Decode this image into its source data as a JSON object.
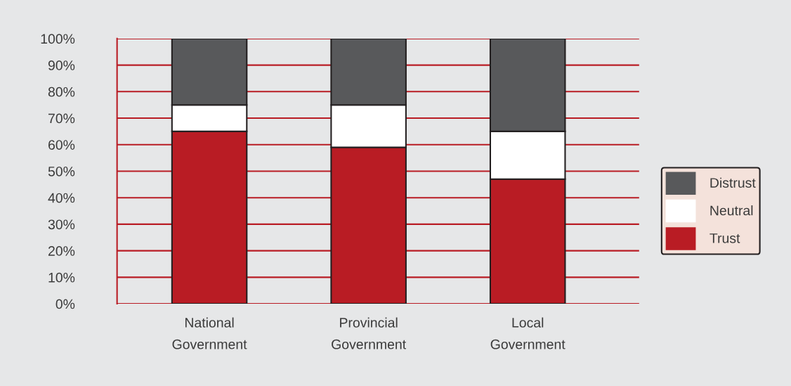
{
  "chart_data": {
    "type": "bar",
    "stacked": true,
    "categories": [
      "National\nGovernment",
      "Provincial\nGovernment",
      "Local\nGovernment"
    ],
    "series": [
      {
        "name": "Trust",
        "color": "#b91c24",
        "values": [
          65,
          59,
          47
        ]
      },
      {
        "name": "Neutral",
        "color": "#ffffff",
        "values": [
          10,
          16,
          18
        ]
      },
      {
        "name": "Distrust",
        "color": "#58595b",
        "values": [
          25,
          25,
          35
        ]
      }
    ],
    "ylim": [
      0,
      100
    ],
    "yticks": [
      {
        "value": 0,
        "label": "0%"
      },
      {
        "value": 10,
        "label": "10%"
      },
      {
        "value": 20,
        "label": "20%"
      },
      {
        "value": 30,
        "label": "30%"
      },
      {
        "value": 40,
        "label": "40%"
      },
      {
        "value": 50,
        "label": "50%"
      },
      {
        "value": 60,
        "label": "60%"
      },
      {
        "value": 70,
        "label": "70%"
      },
      {
        "value": 80,
        "label": "80%"
      },
      {
        "value": 90,
        "label": "90%"
      },
      {
        "value": 100,
        "label": "100%"
      }
    ],
    "grid": "y",
    "legend": "right"
  }
}
